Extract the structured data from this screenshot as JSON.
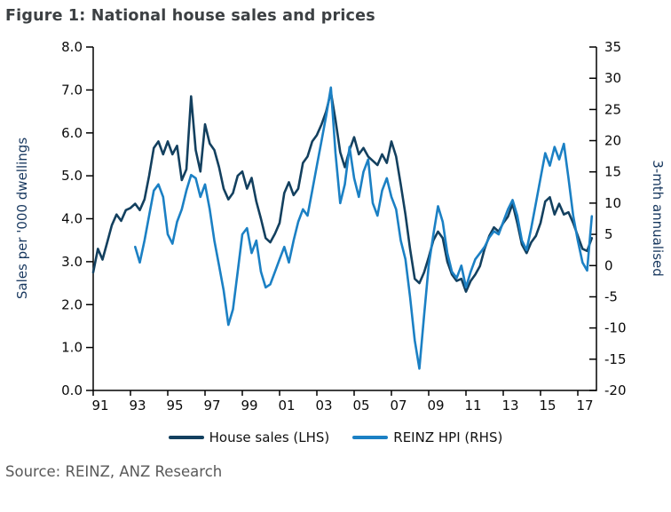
{
  "title": "Figure 1: National house sales and prices",
  "source": "Source: REINZ, ANZ Research",
  "legend": [
    {
      "label": "House sales (LHS)",
      "color": "#13405F"
    },
    {
      "label": "REINZ HPI (RHS)",
      "color": "#1B80C4"
    }
  ],
  "colors": {
    "axis": "#000000",
    "title_text": "#3C4043",
    "axis_title_text": "#17375E",
    "source_text": "#595959",
    "house_sales_line": "#13405F",
    "reinz_hpi_line": "#1B80C4"
  },
  "chart_data": {
    "type": "line",
    "title": "Figure 1: National house sales and prices",
    "ylabel_left": "Sales per '000 dwellings",
    "ylabel_right": "3-mth annualised",
    "ylim_left": [
      0,
      8
    ],
    "ylim_right": [
      -20,
      35
    ],
    "xlim": [
      1991,
      2018
    ],
    "grid": false,
    "legend_position": "bottom",
    "yticks_left": [
      0,
      1,
      2,
      3,
      4,
      5,
      6,
      7,
      8
    ],
    "ytick_labels_left": [
      "0.0",
      "1.0",
      "2.0",
      "3.0",
      "4.0",
      "5.0",
      "6.0",
      "7.0",
      "8.0"
    ],
    "yticks_right": [
      -20,
      -15,
      -10,
      -5,
      0,
      5,
      10,
      15,
      20,
      25,
      30,
      35
    ],
    "ytick_labels_right": [
      "-20",
      "-15",
      "-10",
      "-5",
      "0",
      "5",
      "10",
      "15",
      "20",
      "25",
      "30",
      "35"
    ],
    "xticks": [
      1991,
      1993,
      1995,
      1997,
      1999,
      2001,
      2003,
      2005,
      2007,
      2009,
      2011,
      2013,
      2015,
      2017
    ],
    "xtick_labels": [
      "91",
      "93",
      "95",
      "97",
      "99",
      "01",
      "03",
      "05",
      "07",
      "09",
      "11",
      "13",
      "15",
      "17"
    ],
    "series": [
      {
        "id": "house-sales",
        "name": "House sales (LHS)",
        "axis": "left",
        "color": "#13405F",
        "x_start": 1991.0,
        "x_step": 0.25,
        "values": [
          2.75,
          3.3,
          3.05,
          3.45,
          3.85,
          4.1,
          3.95,
          4.2,
          4.25,
          4.35,
          4.2,
          4.45,
          5.0,
          5.65,
          5.8,
          5.5,
          5.8,
          5.5,
          5.7,
          4.9,
          5.15,
          6.85,
          5.6,
          5.1,
          6.2,
          5.75,
          5.6,
          5.2,
          4.7,
          4.45,
          4.6,
          5.0,
          5.1,
          4.7,
          4.95,
          4.4,
          4.0,
          3.55,
          3.45,
          3.65,
          3.9,
          4.6,
          4.85,
          4.55,
          4.7,
          5.3,
          5.45,
          5.8,
          5.95,
          6.2,
          6.5,
          6.95,
          6.3,
          5.55,
          5.2,
          5.6,
          5.9,
          5.5,
          5.65,
          5.45,
          5.35,
          5.25,
          5.5,
          5.3,
          5.8,
          5.45,
          4.8,
          4.1,
          3.3,
          2.6,
          2.5,
          2.75,
          3.1,
          3.5,
          3.7,
          3.55,
          3.0,
          2.7,
          2.55,
          2.6,
          2.3,
          2.55,
          2.7,
          2.9,
          3.3,
          3.6,
          3.8,
          3.7,
          3.9,
          4.05,
          4.35,
          3.9,
          3.4,
          3.2,
          3.45,
          3.6,
          3.9,
          4.4,
          4.5,
          4.1,
          4.35,
          4.1,
          4.15,
          3.9,
          3.6,
          3.3,
          3.25,
          3.55
        ]
      },
      {
        "id": "reinz-hpi",
        "name": "REINZ HPI (RHS)",
        "axis": "right",
        "color": "#1B80C4",
        "x_start": 1993.25,
        "x_step": 0.25,
        "values": [
          3.0,
          0.5,
          4.0,
          8,
          12,
          13,
          11,
          5,
          3.5,
          7,
          9,
          12,
          14.5,
          14,
          11,
          13,
          9,
          4,
          0,
          -4,
          -9.5,
          -7,
          -1,
          5,
          6,
          2,
          4,
          -1,
          -3.5,
          -3,
          -1,
          1,
          3,
          0.5,
          4,
          7,
          9,
          8,
          12,
          16,
          20,
          24,
          28.5,
          18,
          10,
          13,
          19,
          14,
          11,
          15,
          17,
          10,
          8,
          12,
          14,
          11,
          9,
          4,
          1,
          -5,
          -12,
          -16.5,
          -8,
          0,
          5,
          9.5,
          7,
          2,
          -1,
          -2,
          0,
          -3.5,
          -1,
          1,
          2,
          3,
          4.5,
          5.5,
          5,
          7,
          9,
          10.5,
          8,
          4,
          2.5,
          6,
          10,
          14,
          18,
          16,
          19,
          17,
          19.5,
          14,
          8,
          4,
          0.5,
          -0.8,
          7.9
        ]
      }
    ]
  }
}
